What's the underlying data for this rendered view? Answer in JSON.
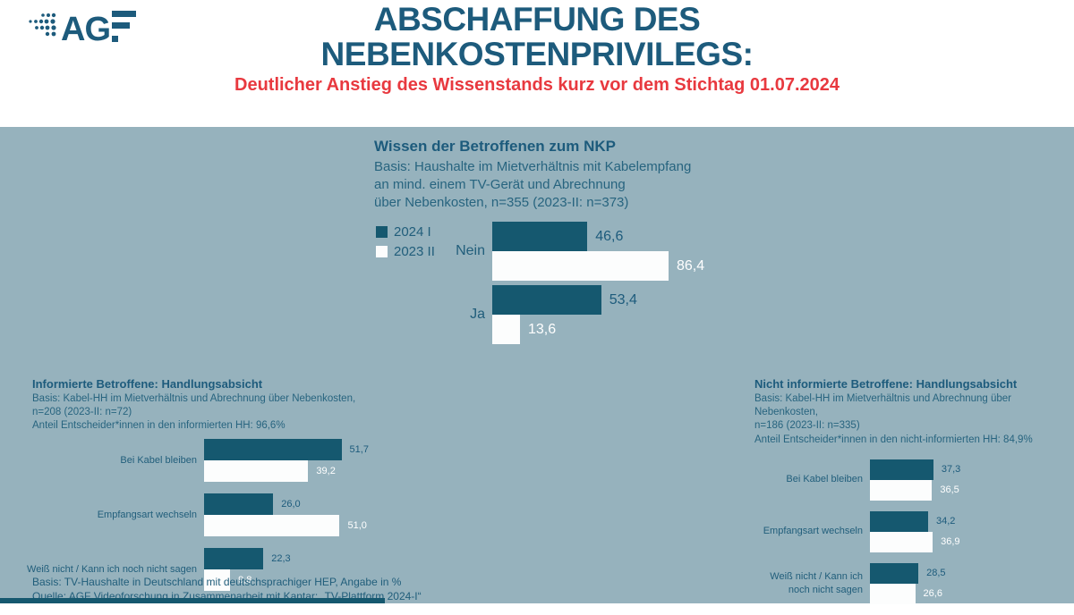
{
  "header": {
    "logo_ag": "AG",
    "title_line1": "ABSCHAFFUNG DES",
    "title_line2": "NEBENKOSTENPRIVILEGS:",
    "subtitle": "Deutlicher Anstieg des Wissenstands kurz vor dem Stichtag 01.07.2024"
  },
  "legend": {
    "series": [
      "2024 I",
      "2023 II"
    ]
  },
  "colors": {
    "teal_dark": "#15586F",
    "teal_text": "#1D5B7C",
    "red_accent": "#E8393F",
    "panel_bg": "#96B2BD",
    "white_bar": "#FCFDFD"
  },
  "chart_data": [
    {
      "type": "bar",
      "orientation": "horizontal",
      "title": "Wissen der Betroffenen zum NKP",
      "basis_lines": [
        "Basis: Haushalte im Mietverhältnis mit Kabelempfang",
        "an mind. einem TV-Gerät und Abrechnung",
        "über Nebenkosten, n=355 (2023-II: n=373)"
      ],
      "categories": [
        "Nein",
        "Ja"
      ],
      "series": [
        {
          "name": "2024 I",
          "values": [
            46.6,
            53.4
          ]
        },
        {
          "name": "2023 II",
          "values": [
            86.4,
            13.6
          ]
        }
      ],
      "unit": "%",
      "xlim": [
        0,
        100
      ],
      "legend_position": "left",
      "grid": false
    },
    {
      "type": "bar",
      "orientation": "horizontal",
      "title": "Informierte Betroffene: Handlungsabsicht",
      "basis_lines": [
        "Basis: Kabel-HH im Mietverhältnis und Abrechnung über Nebenkosten,",
        "n=208 (2023-II: n=72)",
        "Anteil Entscheider*innen in den informierten HH: 96,6%"
      ],
      "categories": [
        "Bei Kabel bleiben",
        "Empfangsart wechseln",
        "Weiß nicht / Kann ich noch nicht sagen"
      ],
      "series": [
        {
          "name": "2024 I",
          "values": [
            51.7,
            26.0,
            22.3
          ]
        },
        {
          "name": "2023 II",
          "values": [
            39.2,
            51.0,
            9.8
          ]
        }
      ],
      "unit": "%",
      "xlim": [
        0,
        60
      ],
      "grid": false
    },
    {
      "type": "bar",
      "orientation": "horizontal",
      "title": "Nicht informierte Betroffene: Handlungsabsicht",
      "basis_lines": [
        "Basis: Kabel-HH im Mietverhältnis und Abrechnung über Nebenkosten,",
        "n=186 (2023-II: n=335)",
        "Anteil Entscheider*innen in den nicht-informierten HH: 84,9%"
      ],
      "categories": [
        "Bei Kabel bleiben",
        "Empfangsart wechseln",
        "Weiß nicht / Kann ich noch nicht sagen"
      ],
      "series": [
        {
          "name": "2024 I",
          "values": [
            37.3,
            34.2,
            28.5
          ]
        },
        {
          "name": "2023 II",
          "values": [
            36.5,
            36.9,
            26.6
          ]
        }
      ],
      "unit": "%",
      "xlim": [
        0,
        60
      ],
      "grid": false
    }
  ],
  "footer": {
    "lines": [
      "Basis: TV-Haushalte in Deutschland mit deutschsprachiger HEP,  Angabe in %",
      "Quelle:  AGF Videoforschung in Zusammenarbeit mit Kantar:  „TV-Plattform 2024-I“"
    ]
  }
}
